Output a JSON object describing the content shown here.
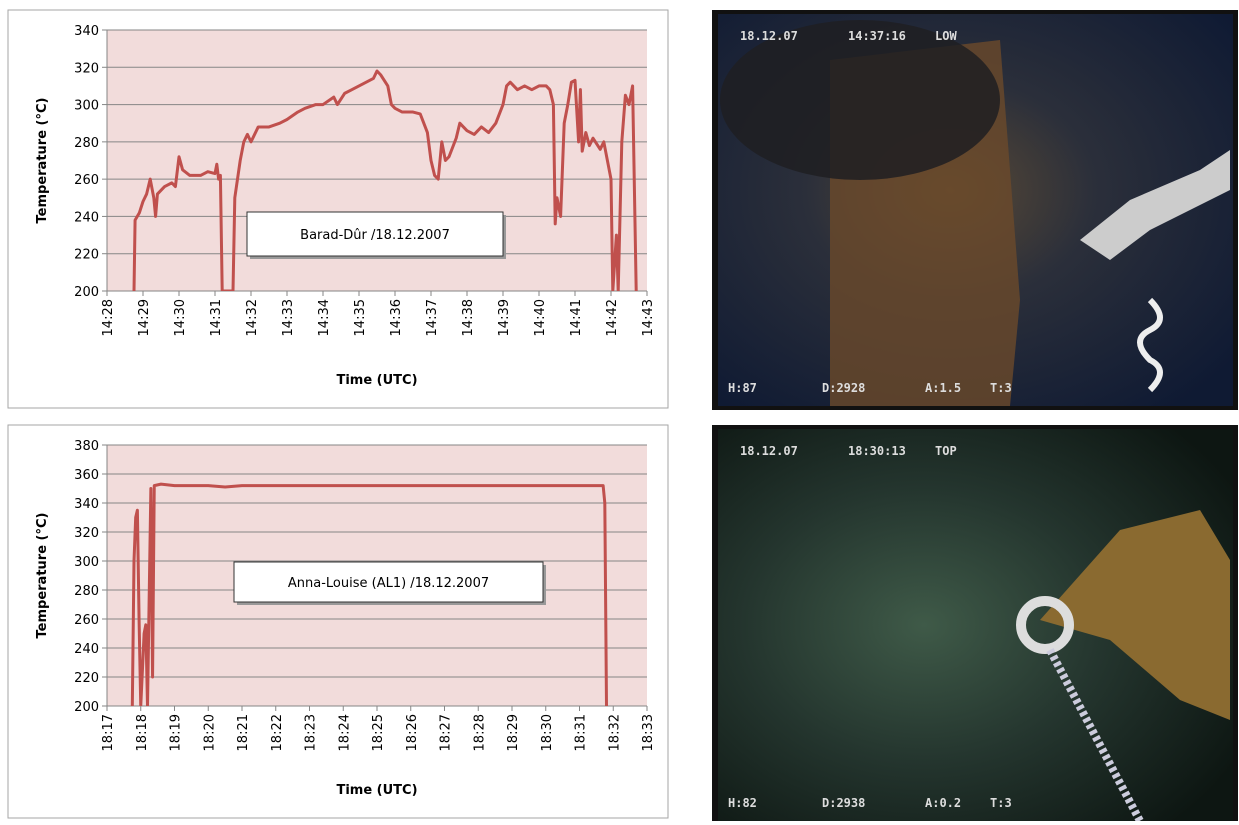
{
  "chart_data": [
    {
      "type": "line",
      "annotation": "Barad-Dûr /18.12.2007",
      "x_label": "Time (UTC)",
      "y_label": "Temperature (°C)",
      "color": "#c0504d",
      "grid": true,
      "x": [
        868.75,
        868.78,
        868.9,
        869.0,
        869.1,
        869.2,
        869.3,
        869.35,
        869.4,
        869.6,
        869.8,
        869.9,
        870.0,
        870.1,
        870.3,
        870.6,
        870.8,
        871.0,
        871.05,
        871.1,
        871.15,
        871.2,
        871.5,
        871.55,
        871.7,
        871.8,
        871.9,
        872.0,
        872.2,
        872.5,
        872.8,
        873.0,
        873.3,
        873.5,
        873.8,
        874.0,
        874.3,
        874.4,
        874.6,
        874.8,
        875.0,
        875.2,
        875.4,
        875.5,
        875.6,
        875.8,
        875.9,
        876.0,
        876.2,
        876.5,
        876.7,
        876.8,
        876.9,
        877.0,
        877.1,
        877.2,
        877.3,
        877.4,
        877.5,
        877.7,
        877.8,
        877.9,
        878.0,
        878.2,
        878.4,
        878.6,
        878.8,
        879.0,
        879.1,
        879.2,
        879.4,
        879.6,
        879.8,
        880.0,
        880.2,
        880.3,
        880.4,
        880.45,
        880.5,
        880.6,
        880.7,
        880.8,
        880.9,
        881.0,
        881.1,
        881.15,
        881.2,
        881.3,
        881.4,
        881.5,
        881.7,
        881.8,
        881.9,
        882.0,
        882.05,
        882.15,
        882.2,
        882.3,
        882.4,
        882.5,
        882.6,
        882.7
      ],
      "values": [
        200,
        238,
        242,
        248,
        252,
        260,
        250,
        240,
        252,
        256,
        258,
        256,
        272,
        265,
        262,
        262,
        264,
        263,
        268,
        260,
        262,
        200,
        200,
        250,
        270,
        280,
        284,
        280,
        288,
        288,
        290,
        292,
        296,
        298,
        300,
        300,
        304,
        300,
        306,
        308,
        310,
        312,
        314,
        318,
        316,
        310,
        300,
        298,
        296,
        296,
        295,
        290,
        285,
        270,
        262,
        260,
        280,
        270,
        272,
        282,
        290,
        288,
        286,
        284,
        288,
        285,
        290,
        300,
        310,
        312,
        308,
        310,
        308,
        310,
        310,
        308,
        300,
        236,
        250,
        240,
        290,
        300,
        312,
        313,
        280,
        308,
        275,
        285,
        278,
        282,
        276,
        280,
        270,
        260,
        200,
        230,
        200,
        280,
        305,
        300,
        310,
        200
      ],
      "xlim": [
        868,
        883
      ],
      "xticks": [
        {
          "value": 868,
          "label": "14:28"
        },
        {
          "value": 869,
          "label": "14:29"
        },
        {
          "value": 870,
          "label": "14:30"
        },
        {
          "value": 871,
          "label": "14:31"
        },
        {
          "value": 872,
          "label": "14:32"
        },
        {
          "value": 873,
          "label": "14:33"
        },
        {
          "value": 874,
          "label": "14:34"
        },
        {
          "value": 875,
          "label": "14:35"
        },
        {
          "value": 876,
          "label": "14:36"
        },
        {
          "value": 877,
          "label": "14:37"
        },
        {
          "value": 878,
          "label": "14:38"
        },
        {
          "value": 879,
          "label": "14:39"
        },
        {
          "value": 880,
          "label": "14:40"
        },
        {
          "value": 881,
          "label": "14:41"
        },
        {
          "value": 882,
          "label": "14:42"
        },
        {
          "value": 883,
          "label": "14:43"
        }
      ],
      "ylim": [
        200,
        340
      ],
      "yticks": [
        200,
        220,
        240,
        260,
        280,
        300,
        320,
        340
      ]
    },
    {
      "type": "line",
      "annotation": "Anna-Louise (AL1) /18.12.2007",
      "x_label": "Time (UTC)",
      "y_label": "Temperature (°C)",
      "color": "#c0504d",
      "grid": true,
      "x": [
        1097.75,
        1097.8,
        1097.85,
        1097.9,
        1097.95,
        1098.0,
        1098.1,
        1098.15,
        1098.2,
        1098.3,
        1098.35,
        1098.4,
        1098.6,
        1099,
        1100,
        1100.5,
        1101,
        1103,
        1105,
        1107,
        1109,
        1111,
        1111.7,
        1111.75,
        1111.8
      ],
      "values": [
        200,
        300,
        330,
        335,
        260,
        200,
        250,
        256,
        200,
        350,
        220,
        352,
        353,
        352,
        352,
        351,
        352,
        352,
        352,
        352,
        352,
        352,
        352,
        340,
        200
      ],
      "xlim": [
        1097,
        1113
      ],
      "xticks": [
        {
          "value": 1097,
          "label": "18:17"
        },
        {
          "value": 1098,
          "label": "18:18"
        },
        {
          "value": 1099,
          "label": "18:19"
        },
        {
          "value": 1100,
          "label": "18:20"
        },
        {
          "value": 1101,
          "label": "18:21"
        },
        {
          "value": 1102,
          "label": "18:22"
        },
        {
          "value": 1103,
          "label": "18:23"
        },
        {
          "value": 1104,
          "label": "18:24"
        },
        {
          "value": 1105,
          "label": "18:25"
        },
        {
          "value": 1106,
          "label": "18:26"
        },
        {
          "value": 1107,
          "label": "18:27"
        },
        {
          "value": 1108,
          "label": "18:28"
        },
        {
          "value": 1109,
          "label": "18:29"
        },
        {
          "value": 1110,
          "label": "18:30"
        },
        {
          "value": 1111,
          "label": "18:31"
        },
        {
          "value": 1112,
          "label": "18:32"
        },
        {
          "value": 1113,
          "label": "18:33"
        }
      ],
      "ylim": [
        200,
        380
      ],
      "yticks": [
        200,
        220,
        240,
        260,
        280,
        300,
        320,
        340,
        360,
        380
      ]
    }
  ],
  "photos": [
    {
      "top": [
        "18.12.07",
        "14:37:16",
        "LOW"
      ],
      "bottom": [
        "H:87",
        "D:2928",
        "A:1.5",
        "T:3"
      ]
    },
    {
      "top": [
        "18.12.07",
        "18:30:13",
        "TOP"
      ],
      "bottom": [
        "H:82",
        "D:2938",
        "A:0.2",
        "T:3"
      ]
    }
  ]
}
